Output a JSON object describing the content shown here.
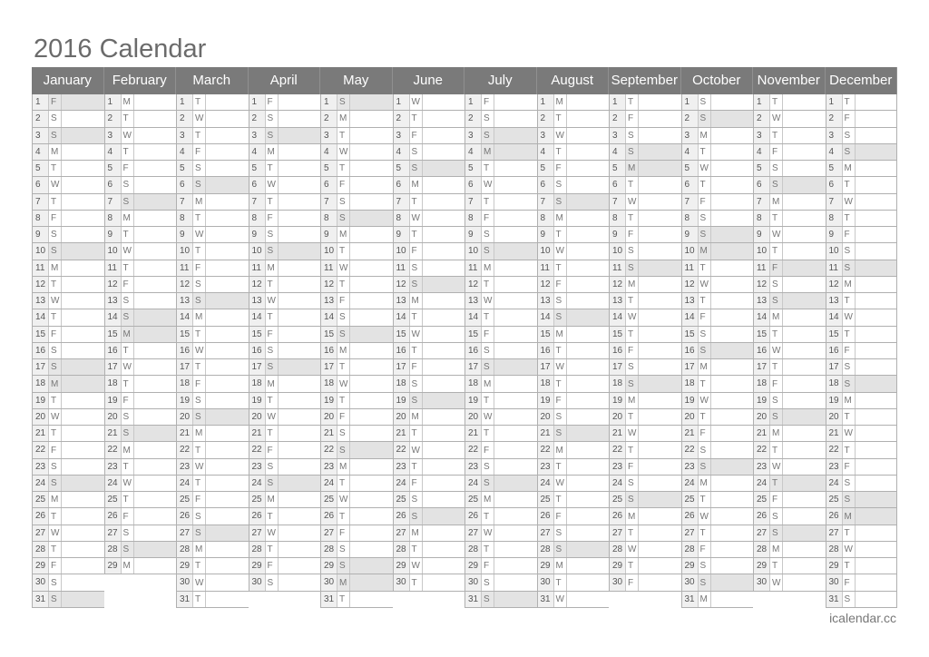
{
  "title": "2016 Calendar",
  "footer": "icalendar.cc",
  "colors": {
    "header": "#7a7a7a",
    "shaded": "#e3e3e3",
    "day_number_bg": "#f0f0f0"
  },
  "months": [
    {
      "name": "January",
      "weekdays": "FSSMTWTFSSMTWTFSSMTWTFSSMTWTFSS",
      "shaded": [
        1,
        3,
        10,
        17,
        18,
        24,
        31
      ]
    },
    {
      "name": "February",
      "weekdays": "MTWTFSSMTWTFSSMTWTFSSMTWTFSSM",
      "shaded": [
        7,
        14,
        15,
        21,
        28
      ]
    },
    {
      "name": "March",
      "weekdays": "TWTFSSMTWTFSSMTWTFSSMTWTFSSMTWT",
      "shaded": [
        6,
        13,
        20,
        27
      ]
    },
    {
      "name": "April",
      "weekdays": "FSSMTWTFSSMTWTFSSMTWTFSSMTWTFS",
      "shaded": [
        3,
        10,
        17,
        24
      ]
    },
    {
      "name": "May",
      "weekdays": "SMTWTFSSMTWTFSSMTWTFSSMTWTFSSMT",
      "shaded": [
        1,
        8,
        15,
        22,
        29,
        30
      ]
    },
    {
      "name": "June",
      "weekdays": "WTFSSMTWTFSSMTWTFSSMTWTFSSMTWT",
      "shaded": [
        5,
        12,
        19,
        26
      ]
    },
    {
      "name": "July",
      "weekdays": "FSSMTWTFSSMTWTFSSMTWTFSSMTWTFSS",
      "shaded": [
        3,
        4,
        10,
        17,
        24,
        31
      ]
    },
    {
      "name": "August",
      "weekdays": "MTWTFSSMTWTFSSMTWTFSSMTWTFSSMTW",
      "shaded": [
        7,
        14,
        21,
        28
      ]
    },
    {
      "name": "September",
      "weekdays": "TFSSMTWTFSSMTWTFSSMTWTFSSMTWTF",
      "shaded": [
        4,
        5,
        11,
        18,
        25
      ]
    },
    {
      "name": "October",
      "weekdays": "SSMTWTFSSMTWTFSSMTWTFSSMTWTFSSM",
      "shaded": [
        2,
        9,
        10,
        16,
        23,
        30
      ]
    },
    {
      "name": "November",
      "weekdays": "TWTFSSMTWTFSSMTWTFSSMTWTFSSMTW",
      "shaded": [
        6,
        11,
        13,
        20,
        24,
        27
      ]
    },
    {
      "name": "December",
      "weekdays": "TFSSMTWTFSSMTWTFSSMTWTFSSMTWTFS",
      "shaded": [
        4,
        11,
        18,
        25,
        26
      ]
    }
  ]
}
